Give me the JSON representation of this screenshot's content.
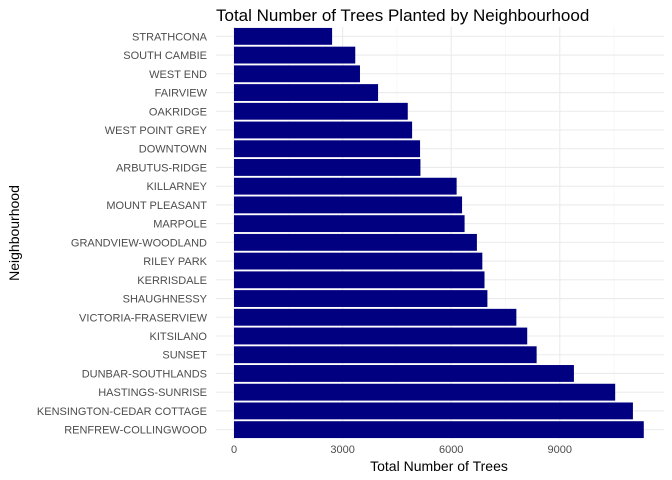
{
  "chart_data": {
    "type": "bar",
    "orientation": "horizontal",
    "title": "Total Number of Trees Planted by Neighbourhood",
    "xlabel": "Total Number of Trees",
    "ylabel": "Neighbourhood",
    "xlim": [
      0,
      11320
    ],
    "xticks": [
      0,
      3000,
      6000,
      9000
    ],
    "xtick_labels": [
      "0",
      "3000",
      "6000",
      "9000"
    ],
    "grid": true,
    "bar_color": "#000080",
    "categories": [
      "STRATHCONA",
      "SOUTH CAMBIE",
      "WEST END",
      "FAIRVIEW",
      "OAKRIDGE",
      "WEST POINT GREY",
      "DOWNTOWN",
      "ARBUTUS-RIDGE",
      "KILLARNEY",
      "MOUNT PLEASANT",
      "MARPOLE",
      "GRANDVIEW-WOODLAND",
      "RILEY PARK",
      "KERRISDALE",
      "SHAUGHNESSY",
      "VICTORIA-FRASERVIEW",
      "KITSILANO",
      "SUNSET",
      "DUNBAR-SOUTHLANDS",
      "HASTINGS-SUNRISE",
      "KENSINGTON-CEDAR COTTAGE",
      "RENFREW-COLLINGWOOD"
    ],
    "values": [
      2710,
      3350,
      3480,
      3980,
      4800,
      4920,
      5140,
      5150,
      6150,
      6300,
      6370,
      6710,
      6860,
      6920,
      7000,
      7800,
      8100,
      8360,
      9390,
      10530,
      11020,
      11320
    ]
  }
}
